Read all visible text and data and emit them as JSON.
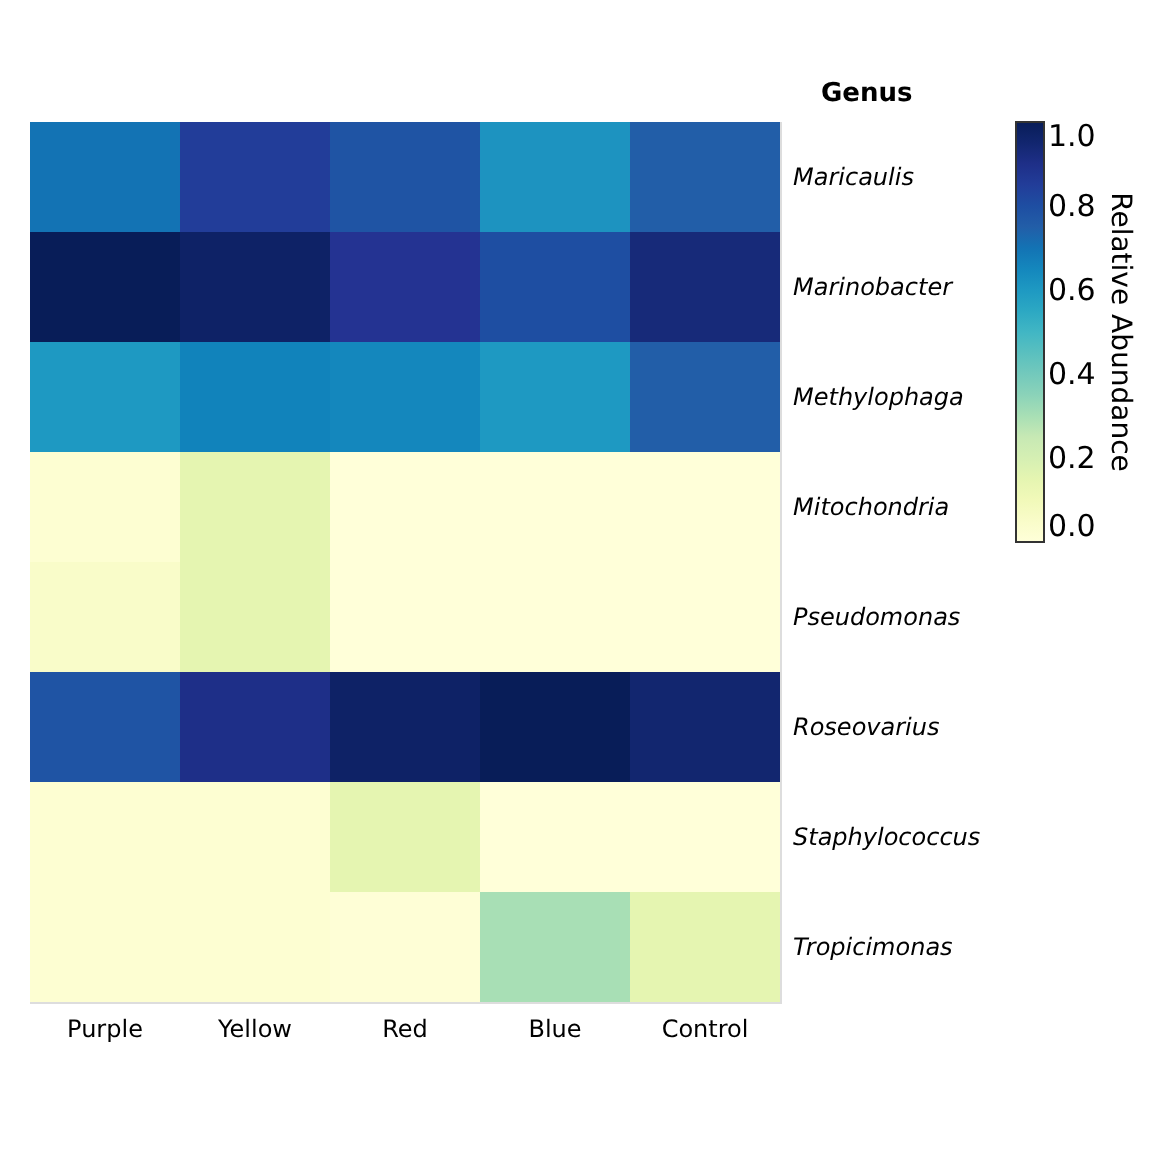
{
  "chart_data": {
    "type": "heatmap",
    "categories": [
      "Purple",
      "Yellow",
      "Red",
      "Blue",
      "Control"
    ],
    "y_categories": [
      "Maricaulis",
      "Marinobacter",
      "Methylophaga",
      "Mitochondria",
      "Pseudomonas",
      "Roseovarius",
      "Staphylococcus",
      "Tropicimonas"
    ],
    "cells": [
      [
        0.7,
        0.85,
        0.78,
        0.62,
        0.75
      ],
      [
        1.0,
        0.97,
        0.88,
        0.8,
        0.93
      ],
      [
        0.6,
        0.66,
        0.65,
        0.6,
        0.75
      ],
      [
        0.02,
        0.15,
        0.0,
        0.0,
        0.0
      ],
      [
        0.05,
        0.15,
        0.0,
        0.0,
        0.0
      ],
      [
        0.78,
        0.9,
        0.97,
        1.0,
        0.95
      ],
      [
        0.02,
        0.02,
        0.15,
        0.0,
        0.0
      ],
      [
        0.02,
        0.02,
        0.01,
        0.3,
        0.15
      ]
    ],
    "ylabel": "Genus",
    "clabel": "Relative Abundance",
    "clim": [
      0.0,
      1.0
    ],
    "cticks": [
      {
        "value": 0.0,
        "label": "0.0"
      },
      {
        "value": 0.2,
        "label": "0.2"
      },
      {
        "value": 0.4,
        "label": "0.4"
      },
      {
        "value": 0.6,
        "label": "0.6"
      },
      {
        "value": 0.8,
        "label": "0.8"
      },
      {
        "value": 1.0,
        "label": "1.0"
      }
    ]
  }
}
